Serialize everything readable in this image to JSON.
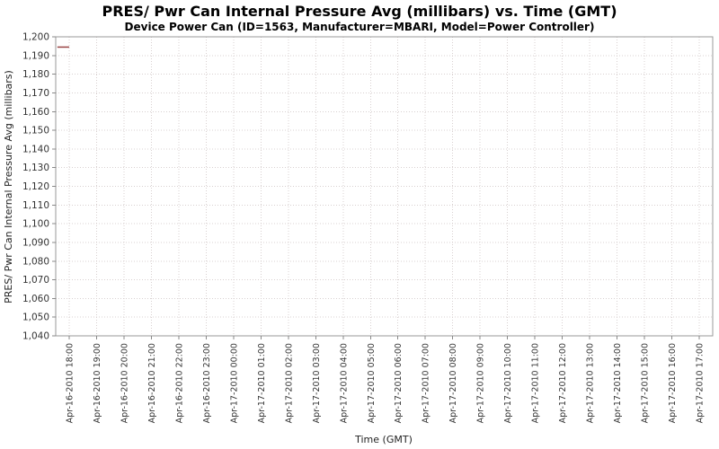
{
  "page": {
    "background_color": "#ffffff"
  },
  "chart_data": {
    "type": "line",
    "title": "PRES/ Pwr Can Internal Pressure Avg (millibars) vs. Time (GMT)",
    "subtitle": "Device Power Can (ID=1563, Manufacturer=MBARI, Model=Power Controller)",
    "xlabel": "Time (GMT)",
    "ylabel": "PRES/ Pwr Can Internal Pressure Avg (millibars)",
    "legend_position": "none",
    "grid": "dotted, both axes, at every tick",
    "plot_background": "#ffffff",
    "x_tick_labels": [
      "Apr-16-2010 18:00",
      "Apr-16-2010 19:00",
      "Apr-16-2010 20:00",
      "Apr-16-2010 21:00",
      "Apr-16-2010 22:00",
      "Apr-16-2010 23:00",
      "Apr-17-2010 00:00",
      "Apr-17-2010 01:00",
      "Apr-17-2010 02:00",
      "Apr-17-2010 03:00",
      "Apr-17-2010 04:00",
      "Apr-17-2010 05:00",
      "Apr-17-2010 06:00",
      "Apr-17-2010 07:00",
      "Apr-17-2010 08:00",
      "Apr-17-2010 09:00",
      "Apr-17-2010 10:00",
      "Apr-17-2010 11:00",
      "Apr-17-2010 12:00",
      "Apr-17-2010 13:00",
      "Apr-17-2010 14:00",
      "Apr-17-2010 15:00",
      "Apr-17-2010 16:00",
      "Apr-17-2010 17:00"
    ],
    "x_tick_interval_hours": 1,
    "x_range_hours_from_first_tick": [
      -0.49,
      23.49
    ],
    "y_ticks": [
      1040,
      1050,
      1060,
      1070,
      1080,
      1090,
      1100,
      1110,
      1120,
      1130,
      1140,
      1150,
      1160,
      1170,
      1180,
      1190,
      1200
    ],
    "ylim": [
      1040,
      1200
    ],
    "y_tick_interval": 10,
    "series": [
      {
        "name": "PRES/ Pwr Can Internal Pressure Avg (millibars)",
        "color": "#994444",
        "points": [
          {
            "hours_from_first_tick": -0.43,
            "value": 1194.5
          },
          {
            "hours_from_first_tick": 0.0,
            "value": 1194.5
          }
        ]
      }
    ],
    "colors": {
      "title": "#000000",
      "tick_label": "#333333",
      "axis_border": "#999999",
      "tick_mark": "#888888",
      "gridline": "#d8d0d0",
      "series_line": "#994444"
    }
  }
}
